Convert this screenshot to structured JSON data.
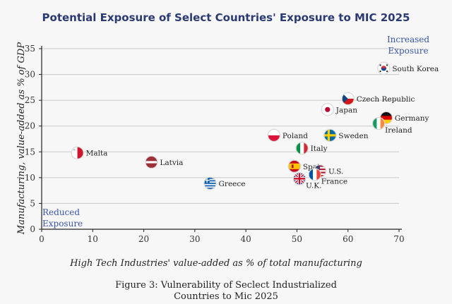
{
  "colors": {
    "title": "#2b3a73",
    "corner_text": "#3a56a8",
    "grid": "#c8c8c8",
    "background": "#f7f7f7"
  },
  "caption": {
    "line1": "Figure 3: Vulnerability of Seclect Industrialized",
    "line2": "Countries to Mic 2025"
  },
  "chart_data": {
    "type": "scatter",
    "title": "Potential Exposure of Select Countries' Exposure to MIC 2025",
    "xlabel": "High Tech Industries' value-added as % of total manufacturing",
    "ylabel": "Manufacturing, value-added as % of GDP",
    "xlim": [
      0,
      70
    ],
    "ylim": [
      0,
      35
    ],
    "xticks": [
      0,
      10,
      20,
      30,
      40,
      50,
      60,
      70
    ],
    "yticks": [
      0,
      5,
      10,
      15,
      20,
      25,
      30,
      35
    ],
    "grid": "horizontal",
    "annotations": [
      {
        "lines": [
          "Increased",
          "Exposure"
        ],
        "position": "top-right"
      },
      {
        "lines": [
          "Reduced",
          "Exposure"
        ],
        "position": "bottom-left"
      }
    ],
    "points": [
      {
        "label": "South Korea",
        "x": 67,
        "y": 31.2,
        "flag": "south-korea",
        "label_pos": "right"
      },
      {
        "label": "Czech Republic",
        "x": 60,
        "y": 25.3,
        "flag": "czech-republic",
        "label_pos": "right"
      },
      {
        "label": "Japan",
        "x": 56,
        "y": 23.2,
        "flag": "japan",
        "label_pos": "right"
      },
      {
        "label": "Germany",
        "x": 67.5,
        "y": 21.6,
        "flag": "germany",
        "label_pos": "right"
      },
      {
        "label": "Ireland",
        "x": 66,
        "y": 20.5,
        "flag": "ireland",
        "label_pos": "right-below"
      },
      {
        "label": "Poland",
        "x": 45.5,
        "y": 18.2,
        "flag": "poland",
        "label_pos": "right"
      },
      {
        "label": "Sweden",
        "x": 56.5,
        "y": 18.2,
        "flag": "sweden",
        "label_pos": "right"
      },
      {
        "label": "Italy",
        "x": 51,
        "y": 15.7,
        "flag": "italy",
        "label_pos": "right"
      },
      {
        "label": "Malta",
        "x": 7,
        "y": 14.8,
        "flag": "malta",
        "label_pos": "right"
      },
      {
        "label": "Latvia",
        "x": 21.5,
        "y": 13.0,
        "flag": "latvia",
        "label_pos": "right"
      },
      {
        "label": "Spain",
        "x": 49.5,
        "y": 12.2,
        "flag": "spain",
        "label_pos": "right"
      },
      {
        "label": "U.S.",
        "x": 54.5,
        "y": 11.3,
        "flag": "us",
        "label_pos": "right"
      },
      {
        "label": "France",
        "x": 53.5,
        "y": 10.6,
        "flag": "france",
        "label_pos": "right-below"
      },
      {
        "label": "U.K.",
        "x": 50.5,
        "y": 9.8,
        "flag": "uk",
        "label_pos": "right-below"
      },
      {
        "label": "Greece",
        "x": 33,
        "y": 8.9,
        "flag": "greece",
        "label_pos": "right"
      }
    ]
  }
}
